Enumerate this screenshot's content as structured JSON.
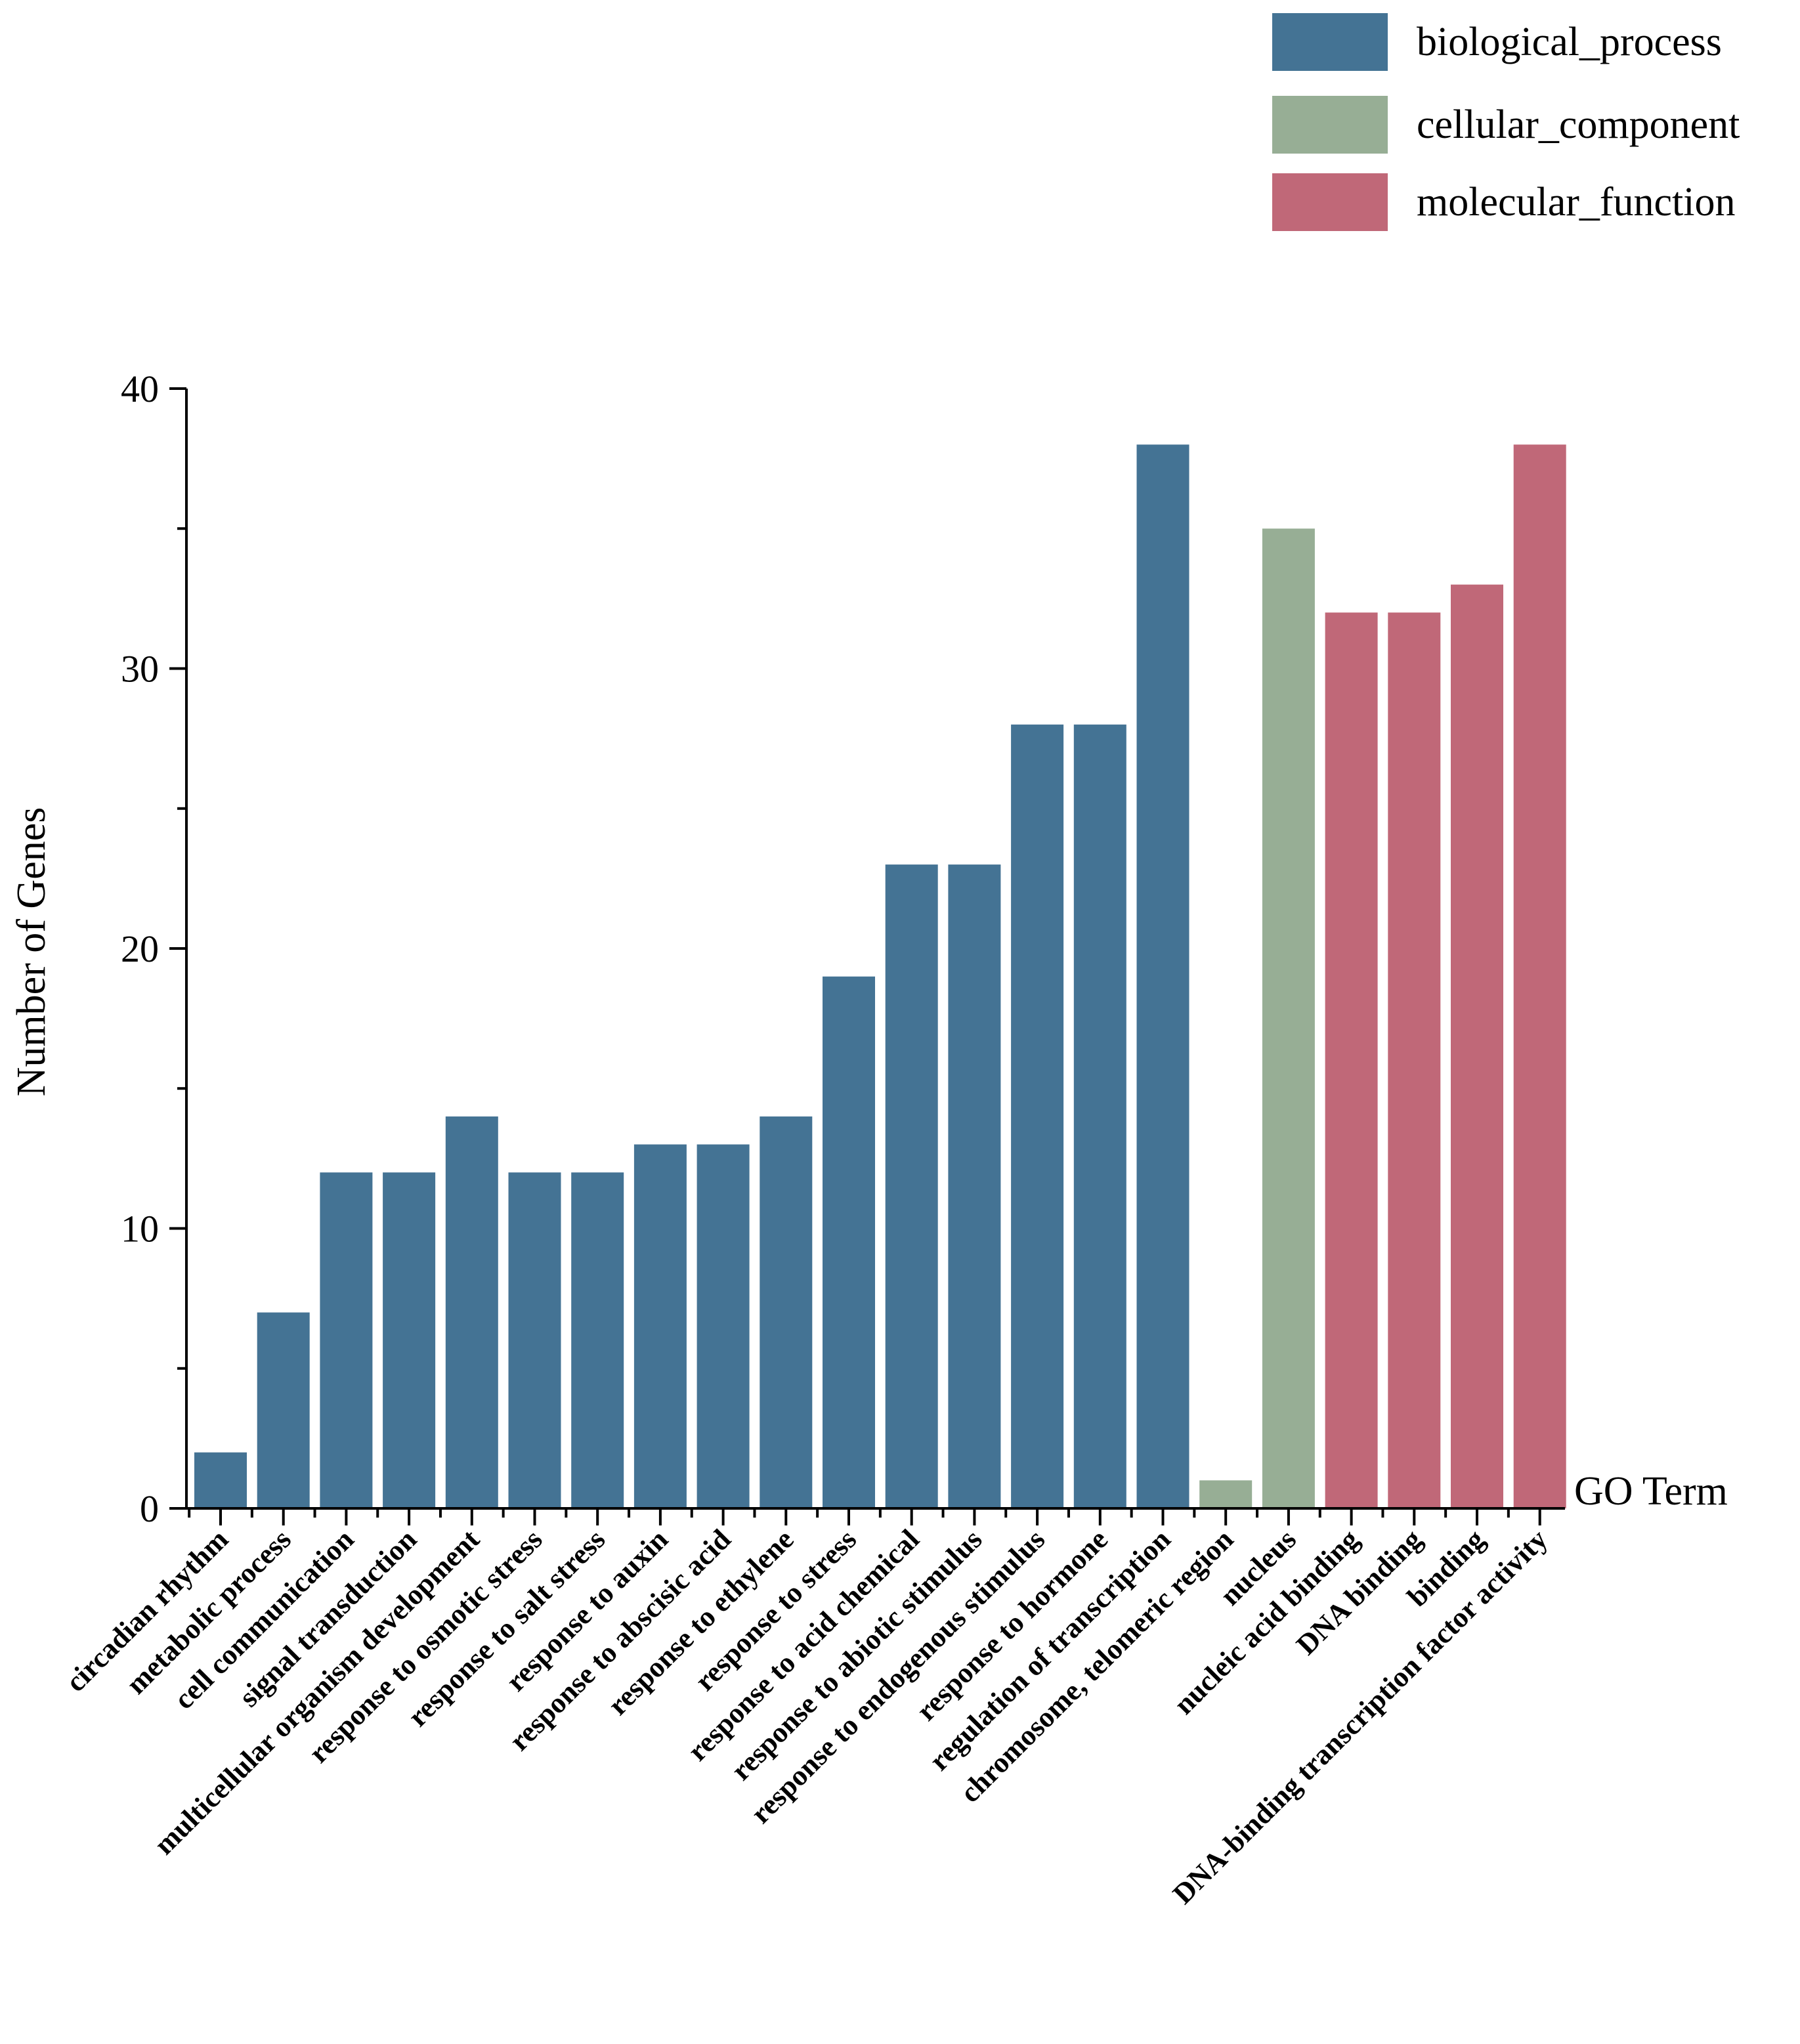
{
  "chart_data": {
    "type": "bar",
    "ylabel": "Number of Genes",
    "xlabel": "GO Term",
    "ylim": [
      0,
      40
    ],
    "yticks": [
      0,
      10,
      20,
      30,
      40
    ],
    "grid": false,
    "legend_placement": "top-right",
    "legend": [
      {
        "name": "biological_process",
        "color": "#447394"
      },
      {
        "name": "cellular_component",
        "color": "#97AE95"
      },
      {
        "name": "molecular_function",
        "color": "#C06878"
      }
    ],
    "categories": [
      {
        "label": "circadian rhythm",
        "value": 2,
        "group": "biological_process"
      },
      {
        "label": "metabolic process",
        "value": 7,
        "group": "biological_process"
      },
      {
        "label": "cell communication",
        "value": 12,
        "group": "biological_process"
      },
      {
        "label": "signal transduction",
        "value": 12,
        "group": "biological_process"
      },
      {
        "label": "multicellular organism development",
        "value": 14,
        "group": "biological_process"
      },
      {
        "label": "response to osmotic stress",
        "value": 12,
        "group": "biological_process"
      },
      {
        "label": "response to salt stress",
        "value": 12,
        "group": "biological_process"
      },
      {
        "label": "response to auxin",
        "value": 13,
        "group": "biological_process"
      },
      {
        "label": "response to abscisic acid",
        "value": 13,
        "group": "biological_process"
      },
      {
        "label": "response to ethylene",
        "value": 14,
        "group": "biological_process"
      },
      {
        "label": "response to stress",
        "value": 19,
        "group": "biological_process"
      },
      {
        "label": "response to acid chemical",
        "value": 23,
        "group": "biological_process"
      },
      {
        "label": "response to abiotic stimulus",
        "value": 23,
        "group": "biological_process"
      },
      {
        "label": "response to endogenous stimulus",
        "value": 28,
        "group": "biological_process"
      },
      {
        "label": "response to hormone",
        "value": 28,
        "group": "biological_process"
      },
      {
        "label": "regulation of transcription",
        "value": 38,
        "group": "biological_process"
      },
      {
        "label": "chromosome, telomeric region",
        "value": 1,
        "group": "cellular_component"
      },
      {
        "label": "nucleus",
        "value": 35,
        "group": "cellular_component"
      },
      {
        "label": "nucleic acid binding",
        "value": 32,
        "group": "molecular_function"
      },
      {
        "label": "DNA binding",
        "value": 32,
        "group": "molecular_function"
      },
      {
        "label": "binding",
        "value": 33,
        "group": "molecular_function"
      },
      {
        "label": "DNA-binding transcription factor activity",
        "value": 38,
        "group": "molecular_function"
      }
    ]
  }
}
